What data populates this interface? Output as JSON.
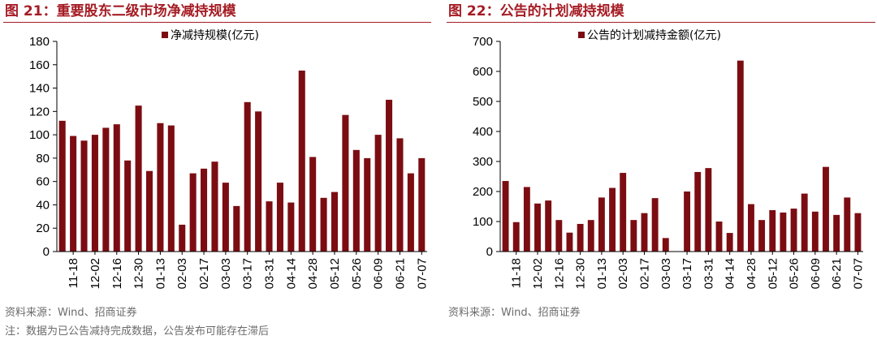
{
  "left_panel": {
    "title": "图 21：重要股东二级市场净减持规模",
    "source": "资料来源：Wind、招商证券"
  },
  "right_panel": {
    "title": "图 22：公告的计划减持规模",
    "source": "资料来源：Wind、招商证券"
  },
  "footnote": "注：数据为已公告减持完成数据，公告发布可能存在滞后",
  "chart_data": [
    {
      "type": "bar",
      "legend": "净减持规模(亿元)",
      "color": "#7b0d12",
      "ylim": [
        0,
        180
      ],
      "yticks": [
        0,
        20,
        40,
        60,
        80,
        100,
        120,
        140,
        160,
        180
      ],
      "x_tick_labels": [
        "11-18",
        "12-02",
        "12-16",
        "12-30",
        "01-13",
        "02-03",
        "02-17",
        "03-03",
        "03-17",
        "03-31",
        "04-14",
        "04-28",
        "05-12",
        "05-26",
        "06-09",
        "06-21",
        "07-07"
      ],
      "values": [
        112,
        99,
        95,
        100,
        106,
        109,
        78,
        125,
        69,
        110,
        108,
        23,
        67,
        71,
        77,
        59,
        39,
        128,
        120,
        43,
        59,
        42,
        155,
        81,
        46,
        51,
        117,
        87,
        80,
        100,
        130,
        97,
        67,
        80
      ],
      "legend_position": "top-center",
      "grid": false
    },
    {
      "type": "bar",
      "legend": "公告的计划减持金额(亿元)",
      "color": "#7b0d12",
      "ylim": [
        0,
        700
      ],
      "yticks": [
        0,
        100,
        200,
        300,
        400,
        500,
        600,
        700
      ],
      "x_tick_labels": [
        "11-18",
        "12-02",
        "12-16",
        "12-30",
        "01-13",
        "02-03",
        "02-17",
        "03-03",
        "03-17",
        "03-31",
        "04-14",
        "04-28",
        "05-12",
        "05-26",
        "06-09",
        "06-21",
        "07-07"
      ],
      "values": [
        235,
        98,
        215,
        160,
        170,
        105,
        63,
        92,
        105,
        180,
        212,
        262,
        105,
        128,
        178,
        45,
        0,
        200,
        265,
        278,
        100,
        62,
        636,
        158,
        105,
        138,
        130,
        143,
        193,
        133,
        282,
        122,
        180,
        128
      ],
      "legend_position": "top-center",
      "grid": false
    }
  ]
}
